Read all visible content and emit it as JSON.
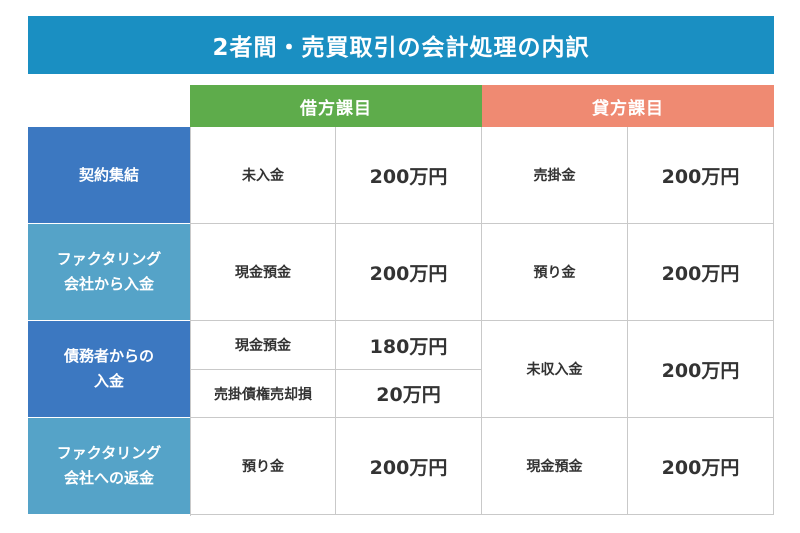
{
  "title": "2者間・売買取引の会計処理の内訳",
  "headers": {
    "debit": "借方課目",
    "credit": "貸方課目"
  },
  "rows": [
    {
      "label": "契約集結",
      "debit_item": "未入金",
      "debit_amount": "200万円",
      "credit_item": "売掛金",
      "credit_amount": "200万円"
    },
    {
      "label": "ファクタリング\n会社から入金",
      "debit_item": "現金預金",
      "debit_amount": "200万円",
      "credit_item": "預り金",
      "credit_amount": "200万円"
    },
    {
      "label": "債務者からの\n入金",
      "debit_item_1": "現金預金",
      "debit_amount_1": "180万円",
      "debit_item_2": "売掛債権売却損",
      "debit_amount_2": "20万円",
      "credit_item": "未収入金",
      "credit_amount": "200万円"
    },
    {
      "label": "ファクタリング\n会社への返金",
      "debit_item": "預り金",
      "debit_amount": "200万円",
      "credit_item": "現金預金",
      "credit_amount": "200万円"
    }
  ],
  "colors": {
    "title_bg": "#1a8fc2",
    "debit_header": "#5eac4b",
    "credit_header": "#ef8a72",
    "row_dark": "#3c78c1",
    "row_light": "#55a3c8"
  }
}
